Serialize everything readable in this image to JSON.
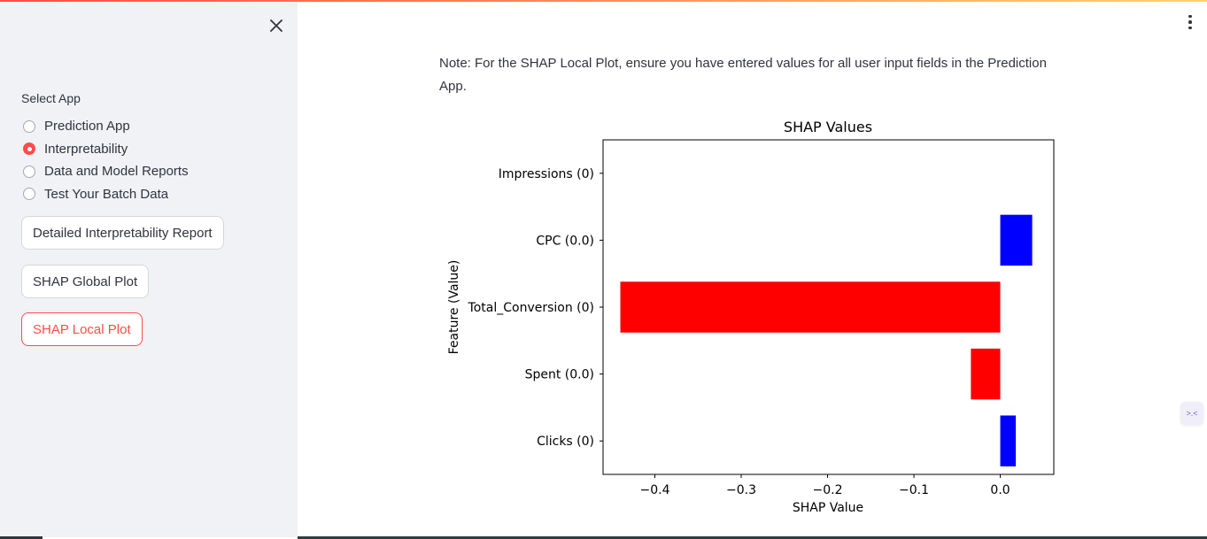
{
  "sidebar": {
    "select_label": "Select App",
    "options": [
      {
        "label": "Prediction App",
        "checked": false
      },
      {
        "label": "Interpretability",
        "checked": true
      },
      {
        "label": "Data and Model Reports",
        "checked": false
      },
      {
        "label": "Test Your Batch Data",
        "checked": false
      }
    ],
    "buttons": [
      {
        "label": "Detailed Interpretability Report",
        "active": false
      },
      {
        "label": "SHAP Global Plot",
        "active": false
      },
      {
        "label": "SHAP Local Plot",
        "active": true
      }
    ],
    "close_icon": "close-icon"
  },
  "main": {
    "note": "Note: For the SHAP Local Plot, ensure you have entered values for all user input fields in the Prediction App.",
    "menu_icon": "kebab-menu-icon",
    "widget_icon": "collapse-arrows-icon"
  },
  "colors": {
    "accent": "#ff4b4b",
    "positive": "#0000ff",
    "negative": "#ff0000",
    "sidebar_bg": "#f0f2f6"
  },
  "chart_data": {
    "type": "bar",
    "orientation": "horizontal",
    "title": "SHAP Values",
    "xlabel": "SHAP Value",
    "ylabel": "Feature (Value)",
    "categories": [
      "Impressions (0)",
      "CPC (0.0)",
      "Total_Conversion (0)",
      "Spent (0.0)",
      "Clicks (0)"
    ],
    "values": [
      0.0,
      0.037,
      -0.44,
      -0.034,
      0.018
    ],
    "xlim": [
      -0.46,
      0.062
    ],
    "xticks": [
      -0.4,
      -0.3,
      -0.2,
      -0.1,
      0.0
    ],
    "xtick_labels": [
      "−0.4",
      "−0.3",
      "−0.2",
      "−0.1",
      "0.0"
    ],
    "grid": false
  }
}
